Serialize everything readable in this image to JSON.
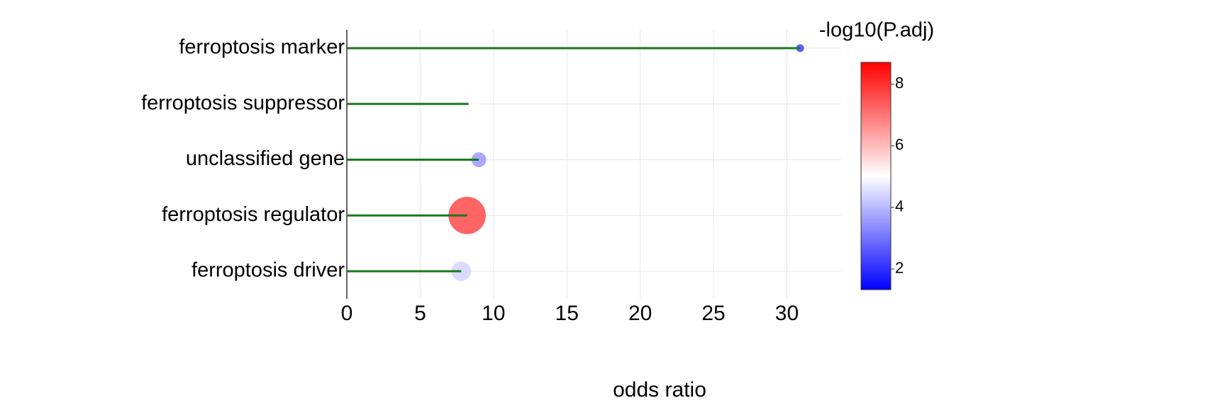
{
  "chart_data": {
    "type": "lollipop",
    "categories": [
      "ferroptosis marker",
      "ferroptosis suppressor",
      "unclassified gene",
      "ferroptosis regulator",
      "ferroptosis driver"
    ],
    "x": [
      30.9,
      8.3,
      9.0,
      8.2,
      7.8
    ],
    "color_values": [
      1.8,
      5.0,
      3.3,
      8.1,
      4.3
    ],
    "x_label": "odds ratio",
    "xlim": [
      0,
      33.7
    ],
    "xticks": [
      0,
      5,
      10,
      15,
      20,
      25,
      30
    ],
    "stem_color": "#1a7a1a",
    "grid": true,
    "colorbar": {
      "title": "-log10(P.adj)",
      "lim": [
        1.33,
        8.71
      ],
      "ticks": [
        2,
        4,
        6,
        8
      ],
      "colors": [
        "#0000ff",
        "#ffffff",
        "#ff0000"
      ]
    }
  }
}
